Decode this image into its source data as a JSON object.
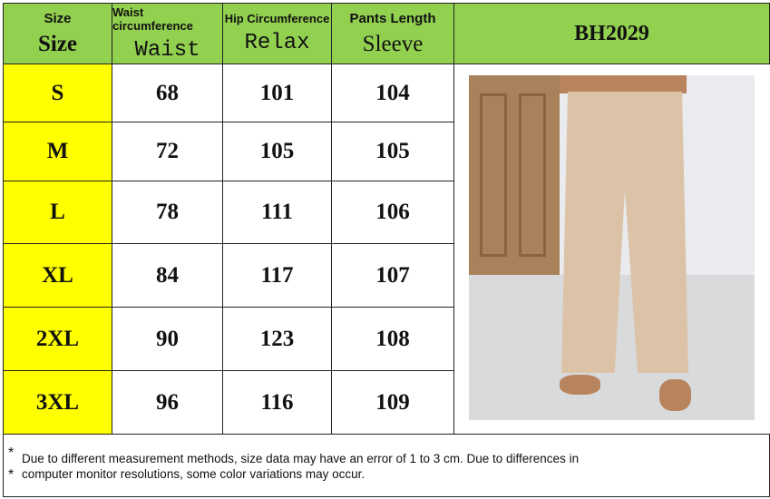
{
  "headers": [
    {
      "small": "Size",
      "big": "Size"
    },
    {
      "small": "Waist circumference",
      "big": "Waist"
    },
    {
      "small": "Hip Circumference",
      "big": "Relax"
    },
    {
      "small": "Pants Length",
      "big": "Sleeve"
    }
  ],
  "product_code": "BH2029",
  "rows": [
    [
      "S",
      "68",
      "101",
      "104"
    ],
    [
      "M",
      "72",
      "105",
      "105"
    ],
    [
      "L",
      "78",
      "111",
      "106"
    ],
    [
      "XL",
      "84",
      "117",
      "107"
    ],
    [
      "2XL",
      "90",
      "123",
      "108"
    ],
    [
      "3XL",
      "96",
      "116",
      "109"
    ]
  ],
  "notes": {
    "star": "*",
    "line1": "Due to different measurement methods, size data may have an error of 1 to 3 cm. Due to differences in",
    "line2": "computer monitor resolutions, some color variations may occur."
  },
  "colors": {
    "header": "#92d050",
    "size_column": "#ffff00"
  }
}
